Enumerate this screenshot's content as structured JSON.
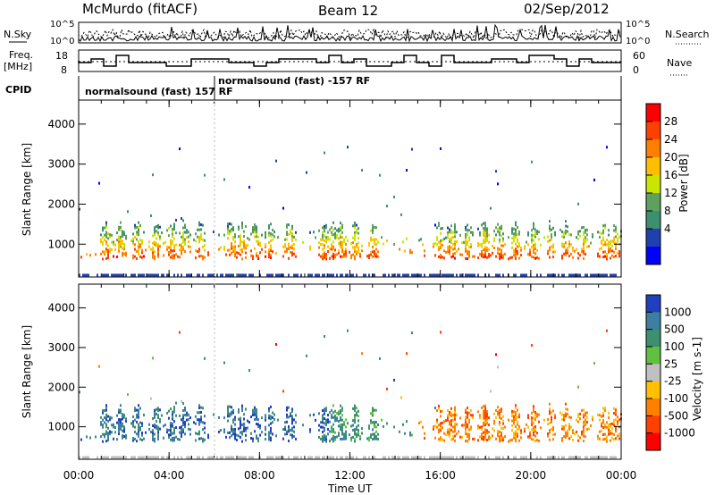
{
  "header": {
    "station": "McMurdo (fitACF)",
    "beam": "Beam 12",
    "date": "02/Sep/2012"
  },
  "top_panels": {
    "nsky_label": "N.Sky",
    "nsearch_label": "N.Search",
    "nsky_ticks": [
      "10^5",
      "10^0"
    ],
    "nsearch_ticks": [
      "10^5",
      "10^0"
    ],
    "freq_label": "Freq.",
    "freq_unit": "[MHz]",
    "freq_ticks": [
      "18",
      "8"
    ],
    "nave_label": "Nave",
    "nave_ticks": [
      "60",
      "0"
    ],
    "cpid_label": "CPID",
    "cpid_segments": [
      "normalsound (fast) 157 RF",
      "normalsound (fast) -157 RF"
    ]
  },
  "chart_data": [
    {
      "type": "heatmap",
      "title": "",
      "ylabel": "Slant Range [km]",
      "xlabel": "",
      "x_ticks": [
        "00:00",
        "04:00",
        "08:00",
        "12:00",
        "16:00",
        "20:00",
        "00:00"
      ],
      "y_ticks": [
        "1000",
        "2000",
        "3000",
        "4000"
      ],
      "ylim": [
        180,
        4600
      ],
      "colorbar": {
        "label": "Power [dB]",
        "ticks": [
          "28",
          "24",
          "20",
          "16",
          "12",
          "8",
          "4"
        ],
        "colors": [
          "#ff0000",
          "#ff4000",
          "#ff7f00",
          "#ffbf00",
          "#c8e600",
          "#5fa05f",
          "#3c9070",
          "#2040b0",
          "#0000ff"
        ]
      },
      "series": [
        {
          "time": "00:00-24:00",
          "range_band": [
            500,
            1400
          ],
          "power_peak": 28
        }
      ]
    },
    {
      "type": "heatmap",
      "title": "",
      "ylabel": "Slant Range [km]",
      "xlabel": "Time UT",
      "x_ticks": [
        "00:00",
        "04:00",
        "08:00",
        "12:00",
        "16:00",
        "20:00",
        "00:00"
      ],
      "y_ticks": [
        "1000",
        "2000",
        "3000",
        "4000"
      ],
      "ylim": [
        180,
        4600
      ],
      "colorbar": {
        "label": "Velocity [m s-1]",
        "ticks": [
          "1000",
          "500",
          "100",
          "25",
          "-25",
          "-100",
          "-500",
          "-1000"
        ],
        "colors": [
          "#2040c0",
          "#3c7fa0",
          "#3c9070",
          "#60c040",
          "#c0c0c0",
          "#ffc000",
          "#ff8000",
          "#ff4000",
          "#ff0000"
        ]
      }
    }
  ],
  "colors": {
    "power_scale": [
      "#0000ff",
      "#2040b0",
      "#3c9070",
      "#5fa05f",
      "#c8e600",
      "#ffbf00",
      "#ff7f00",
      "#ff4000",
      "#ff0000"
    ],
    "velocity_scale": [
      "#ff0000",
      "#ff4000",
      "#ff8000",
      "#ffc000",
      "#c0c0c0",
      "#60c040",
      "#3c9070",
      "#3c7fa0",
      "#2040c0"
    ]
  }
}
